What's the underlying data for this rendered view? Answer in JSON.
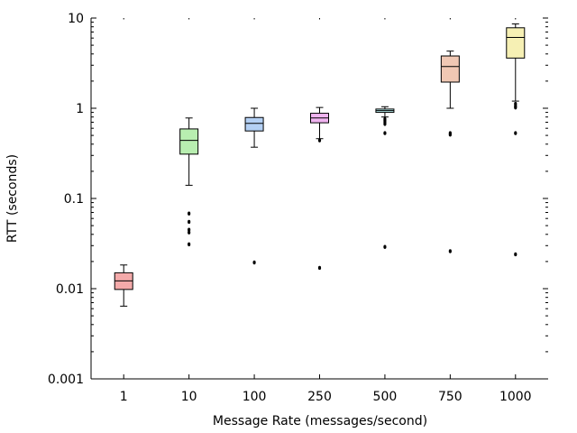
{
  "chart_data": {
    "type": "box",
    "xlabel": "Message Rate (messages/second)",
    "ylabel": "RTT (seconds)",
    "yscale": "log",
    "ylim": [
      0.001,
      10
    ],
    "yticks": [
      {
        "value": 10,
        "label": "10"
      },
      {
        "value": 1,
        "label": "1"
      },
      {
        "value": 0.1,
        "label": "0.1"
      },
      {
        "value": 0.01,
        "label": "0.01"
      },
      {
        "value": 0.001,
        "label": "0.001"
      }
    ],
    "grid": false,
    "categories": [
      "1",
      "10",
      "100",
      "250",
      "500",
      "750",
      "1000"
    ],
    "boxes": [
      {
        "category": "1",
        "color": "#f4aaaa",
        "whisker_low": 0.0064,
        "q1": 0.0098,
        "median": 0.0122,
        "q3": 0.015,
        "whisker_high": 0.0183,
        "outliers": []
      },
      {
        "category": "10",
        "color": "#b8eeb0",
        "whisker_low": 0.14,
        "q1": 0.31,
        "median": 0.44,
        "q3": 0.59,
        "whisker_high": 0.78,
        "outliers": [
          0.068,
          0.055,
          0.045,
          0.042,
          0.031
        ]
      },
      {
        "category": "100",
        "color": "#b4d0f4",
        "whisker_low": 0.37,
        "q1": 0.56,
        "median": 0.68,
        "q3": 0.79,
        "whisker_high": 1.0,
        "outliers": [
          0.0195
        ]
      },
      {
        "category": "250",
        "color": "#f0b4f0",
        "whisker_low": 0.46,
        "q1": 0.69,
        "median": 0.78,
        "q3": 0.88,
        "whisker_high": 1.02,
        "outliers": [
          0.44,
          0.017
        ]
      },
      {
        "category": "500",
        "color": "#b4e8e8",
        "whisker_low": 0.8,
        "q1": 0.9,
        "median": 0.94,
        "q3": 0.98,
        "whisker_high": 1.04,
        "outliers": [
          0.76,
          0.73,
          0.7,
          0.67,
          0.53,
          0.029
        ]
      },
      {
        "category": "750",
        "color": "#f0c8b4",
        "whisker_low": 1.0,
        "q1": 1.95,
        "median": 2.9,
        "q3": 3.8,
        "whisker_high": 4.3,
        "outliers": [
          0.53,
          0.51,
          0.026
        ]
      },
      {
        "category": "1000",
        "color": "#f6f0b4",
        "whisker_low": 1.2,
        "q1": 3.6,
        "median": 6.1,
        "q3": 7.8,
        "whisker_high": 8.6,
        "outliers": [
          1.12,
          1.06,
          1.02,
          0.53,
          0.024
        ]
      }
    ]
  }
}
